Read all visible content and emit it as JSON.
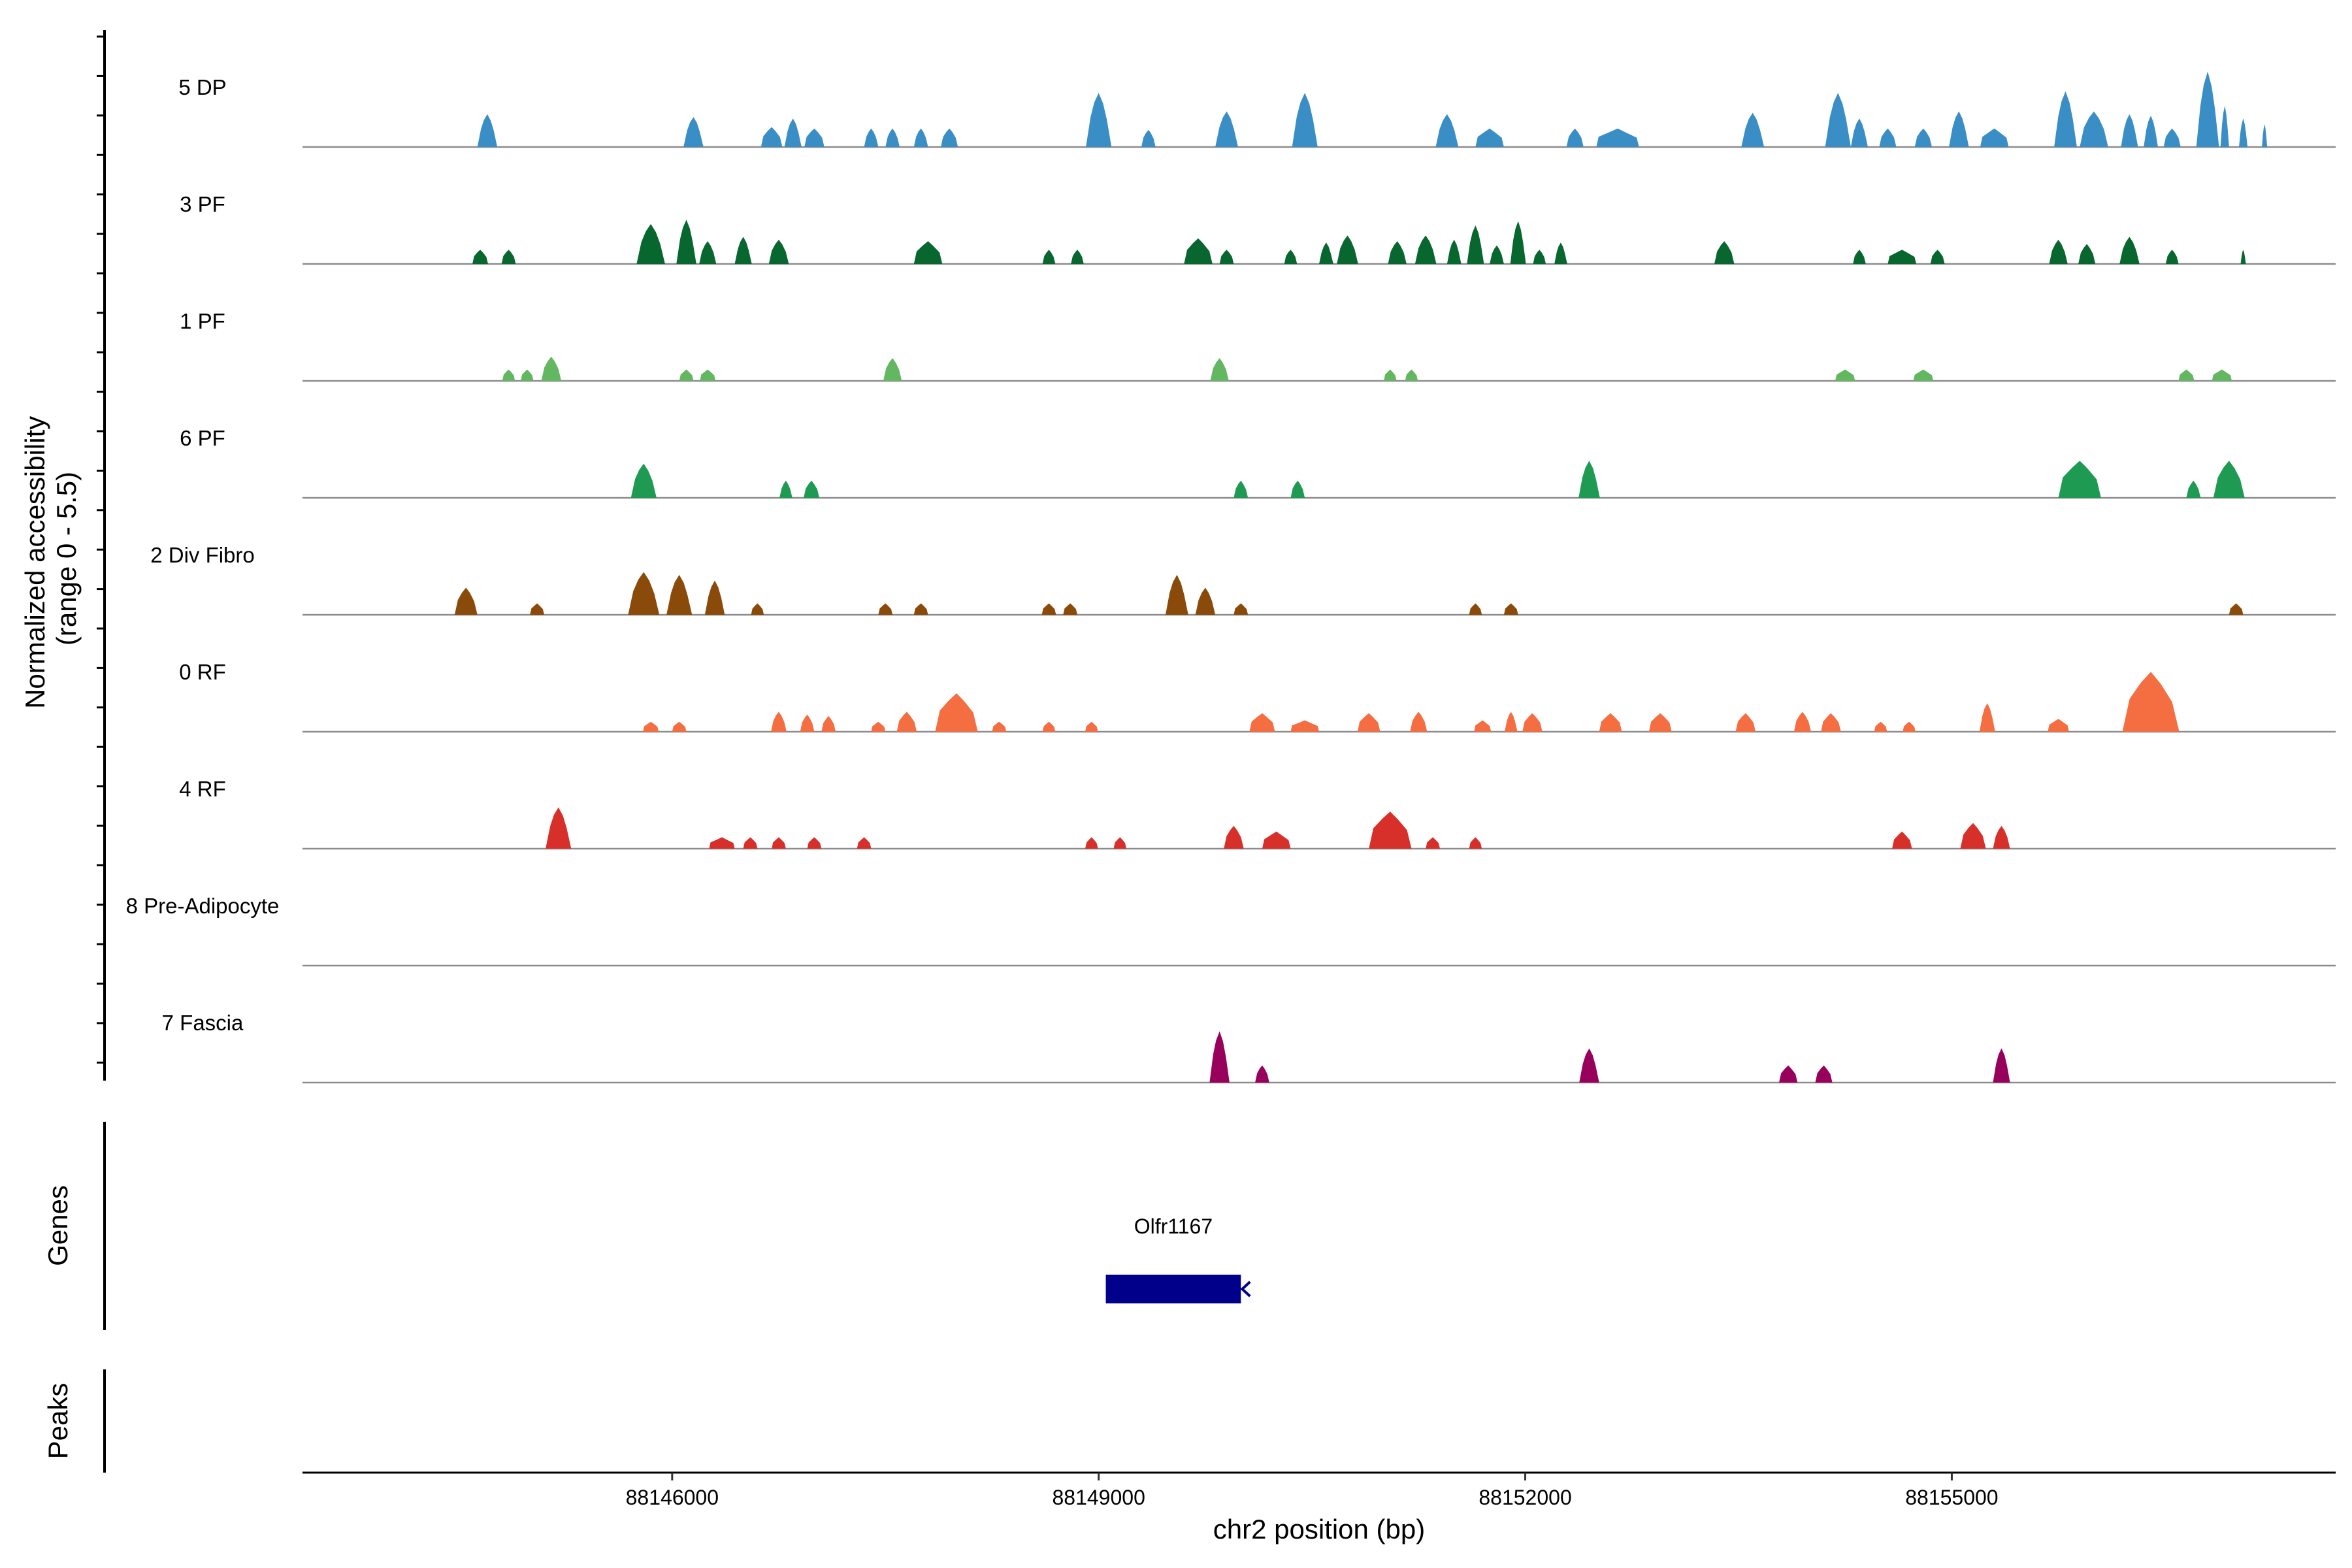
{
  "chart_data": {
    "type": "area",
    "title": "",
    "xlabel": "chr2 position (bp)",
    "ylabel": "Normalized accessibility (range 0 - 5.5)",
    "ylabel_lines": [
      "Normalized accessibility",
      "(range 0 - 5.5)"
    ],
    "xlim": [
      88143400,
      88157700
    ],
    "ylim": [
      0,
      5.5
    ],
    "x_ticks": [
      88146000,
      88149000,
      88152000,
      88155000
    ],
    "x_tick_labels": [
      "88146000",
      "88149000",
      "88152000",
      "88155000"
    ],
    "series": [
      {
        "name": "5 DP",
        "color": "#3a8ec6",
        "peaks": [
          [
            88144700,
            140,
            2.3
          ],
          [
            88146150,
            140,
            2.1
          ],
          [
            88146700,
            150,
            1.4
          ],
          [
            88146850,
            120,
            2.0
          ],
          [
            88147000,
            140,
            1.3
          ],
          [
            88147400,
            100,
            1.3
          ],
          [
            88147550,
            100,
            1.3
          ],
          [
            88147750,
            100,
            1.3
          ],
          [
            88147950,
            120,
            1.3
          ],
          [
            88149000,
            180,
            3.8
          ],
          [
            88149350,
            100,
            1.2
          ],
          [
            88149900,
            160,
            2.5
          ],
          [
            88150450,
            180,
            3.8
          ],
          [
            88151450,
            160,
            2.3
          ],
          [
            88151750,
            200,
            1.3
          ],
          [
            88152350,
            120,
            1.3
          ],
          [
            88152650,
            300,
            1.3
          ],
          [
            88153600,
            160,
            2.4
          ],
          [
            88154200,
            180,
            3.8
          ],
          [
            88154350,
            120,
            2.0
          ],
          [
            88154550,
            120,
            1.3
          ],
          [
            88154800,
            120,
            1.3
          ],
          [
            88155050,
            140,
            2.5
          ],
          [
            88155300,
            200,
            1.3
          ],
          [
            88155800,
            160,
            3.9
          ],
          [
            88156000,
            200,
            2.5
          ],
          [
            88156250,
            120,
            2.3
          ],
          [
            88156400,
            100,
            2.2
          ],
          [
            88156550,
            120,
            1.3
          ],
          [
            88156800,
            160,
            5.3
          ],
          [
            88156920,
            60,
            2.9
          ],
          [
            88157050,
            60,
            2.0
          ],
          [
            88157200,
            30,
            1.6
          ]
        ]
      },
      {
        "name": "3 PF",
        "color": "#07672f",
        "peaks": [
          [
            88144650,
            110,
            1.0
          ],
          [
            88144850,
            100,
            1.0
          ],
          [
            88145850,
            200,
            2.8
          ],
          [
            88146100,
            140,
            3.1
          ],
          [
            88146250,
            120,
            1.6
          ],
          [
            88146500,
            120,
            1.9
          ],
          [
            88146750,
            140,
            1.7
          ],
          [
            88147800,
            200,
            1.6
          ],
          [
            88148650,
            90,
            1.0
          ],
          [
            88148850,
            90,
            1.0
          ],
          [
            88149700,
            200,
            1.8
          ],
          [
            88149900,
            100,
            1.0
          ],
          [
            88150350,
            90,
            1.0
          ],
          [
            88150600,
            100,
            1.5
          ],
          [
            88150750,
            150,
            2.0
          ],
          [
            88151100,
            130,
            1.6
          ],
          [
            88151300,
            150,
            2.0
          ],
          [
            88151500,
            100,
            1.7
          ],
          [
            88151650,
            120,
            2.7
          ],
          [
            88151800,
            100,
            1.3
          ],
          [
            88151950,
            110,
            3.0
          ],
          [
            88152100,
            90,
            1.0
          ],
          [
            88152250,
            90,
            1.5
          ],
          [
            88153400,
            140,
            1.6
          ],
          [
            88154350,
            90,
            1.0
          ],
          [
            88154650,
            200,
            1.0
          ],
          [
            88154900,
            100,
            1.0
          ],
          [
            88155750,
            130,
            1.7
          ],
          [
            88155950,
            120,
            1.4
          ],
          [
            88156250,
            140,
            1.9
          ],
          [
            88156550,
            90,
            1.0
          ],
          [
            88157050,
            20,
            1.0
          ]
        ]
      },
      {
        "name": "1 PF",
        "color": "#62b760",
        "peaks": [
          [
            88144850,
            90,
            0.8
          ],
          [
            88144980,
            90,
            0.8
          ],
          [
            88145150,
            140,
            1.7
          ],
          [
            88146100,
            100,
            0.8
          ],
          [
            88146250,
            110,
            0.8
          ],
          [
            88147550,
            130,
            1.6
          ],
          [
            88149850,
            130,
            1.6
          ],
          [
            88151050,
            90,
            0.8
          ],
          [
            88151200,
            90,
            0.8
          ],
          [
            88154250,
            140,
            0.8
          ],
          [
            88154800,
            140,
            0.8
          ],
          [
            88156650,
            110,
            0.8
          ],
          [
            88156900,
            140,
            0.8
          ]
        ]
      },
      {
        "name": "6 PF",
        "color": "#1e9a53",
        "peaks": [
          [
            88145800,
            180,
            2.4
          ],
          [
            88146800,
            90,
            1.2
          ],
          [
            88146980,
            110,
            1.2
          ],
          [
            88150000,
            100,
            1.2
          ],
          [
            88150400,
            100,
            1.2
          ],
          [
            88152450,
            150,
            2.6
          ],
          [
            88155900,
            300,
            2.6
          ],
          [
            88156700,
            100,
            1.2
          ],
          [
            88156950,
            220,
            2.6
          ]
        ]
      },
      {
        "name": "2 Div Fibro",
        "color": "#8a4b0a",
        "peaks": [
          [
            88144550,
            160,
            1.9
          ],
          [
            88145050,
            100,
            0.8
          ],
          [
            88145800,
            220,
            3.0
          ],
          [
            88146050,
            180,
            2.8
          ],
          [
            88146300,
            140,
            2.4
          ],
          [
            88146600,
            90,
            0.8
          ],
          [
            88147500,
            100,
            0.8
          ],
          [
            88147750,
            100,
            0.8
          ],
          [
            88148650,
            100,
            0.8
          ],
          [
            88148800,
            100,
            0.8
          ],
          [
            88149550,
            160,
            2.8
          ],
          [
            88149750,
            140,
            1.9
          ],
          [
            88150000,
            100,
            0.8
          ],
          [
            88151650,
            90,
            0.8
          ],
          [
            88151900,
            100,
            0.8
          ],
          [
            88157000,
            100,
            0.8
          ]
        ]
      },
      {
        "name": "0 RF",
        "color": "#f46e42",
        "peaks": [
          [
            88145850,
            110,
            0.7
          ],
          [
            88146050,
            100,
            0.7
          ],
          [
            88146750,
            110,
            1.4
          ],
          [
            88146950,
            100,
            1.2
          ],
          [
            88147100,
            100,
            1.1
          ],
          [
            88147450,
            100,
            0.7
          ],
          [
            88147650,
            140,
            1.4
          ],
          [
            88148000,
            300,
            2.7
          ],
          [
            88148300,
            100,
            0.7
          ],
          [
            88148650,
            90,
            0.7
          ],
          [
            88148950,
            90,
            0.7
          ],
          [
            88150150,
            180,
            1.3
          ],
          [
            88150450,
            200,
            0.8
          ],
          [
            88150900,
            160,
            1.3
          ],
          [
            88151250,
            120,
            1.4
          ],
          [
            88151700,
            120,
            0.8
          ],
          [
            88151900,
            90,
            1.4
          ],
          [
            88152050,
            140,
            1.3
          ],
          [
            88152600,
            160,
            1.3
          ],
          [
            88152950,
            160,
            1.3
          ],
          [
            88153550,
            140,
            1.3
          ],
          [
            88153950,
            120,
            1.4
          ],
          [
            88154150,
            140,
            1.3
          ],
          [
            88154500,
            90,
            0.7
          ],
          [
            88154700,
            90,
            0.7
          ],
          [
            88155250,
            110,
            2.0
          ],
          [
            88155750,
            150,
            0.9
          ],
          [
            88156400,
            400,
            4.2
          ]
        ]
      },
      {
        "name": "4 RF",
        "color": "#d7302a",
        "peaks": [
          [
            88145200,
            180,
            2.9
          ],
          [
            88146350,
            180,
            0.8
          ],
          [
            88146550,
            100,
            0.8
          ],
          [
            88146750,
            100,
            0.8
          ],
          [
            88147000,
            100,
            0.8
          ],
          [
            88147350,
            100,
            0.8
          ],
          [
            88148950,
            90,
            0.8
          ],
          [
            88149150,
            90,
            0.8
          ],
          [
            88149950,
            140,
            1.6
          ],
          [
            88150250,
            200,
            1.2
          ],
          [
            88151050,
            300,
            2.6
          ],
          [
            88151350,
            100,
            0.8
          ],
          [
            88151650,
            90,
            0.8
          ],
          [
            88154650,
            140,
            1.2
          ],
          [
            88155150,
            180,
            1.8
          ],
          [
            88155350,
            120,
            1.6
          ]
        ]
      },
      {
        "name": "8 Pre-Adipocyte",
        "color": "#d6604d",
        "peaks": []
      },
      {
        "name": "7 Fascia",
        "color": "#97005b",
        "peaks": [
          [
            88149850,
            140,
            3.6
          ],
          [
            88150150,
            100,
            1.2
          ],
          [
            88152450,
            140,
            2.4
          ],
          [
            88153850,
            130,
            1.2
          ],
          [
            88154100,
            120,
            1.2
          ],
          [
            88155350,
            120,
            2.4
          ]
        ]
      }
    ],
    "genes": [
      {
        "name": "Olfr1167",
        "start": 88149050,
        "end": 88150000,
        "strand": "-",
        "color": "#00008b"
      }
    ],
    "bottom_tracks": [
      {
        "name": "Genes"
      },
      {
        "name": "Peaks"
      }
    ]
  }
}
